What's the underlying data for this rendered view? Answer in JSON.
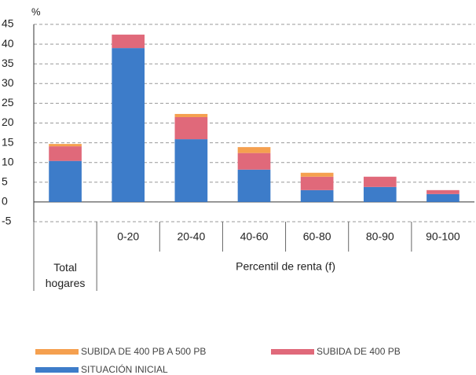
{
  "chart_data": {
    "type": "bar",
    "stacked": true,
    "y_unit": "%",
    "categories": [
      "Total hogares",
      "0-20",
      "20-40",
      "40-60",
      "60-80",
      "80-90",
      "90-100"
    ],
    "x_group_label": "Percentil de renta (f)",
    "series": [
      {
        "name": "SITUACIÓN INICIAL",
        "color": "#3d7cc9",
        "values": [
          10.4,
          39.0,
          15.9,
          8.2,
          3.0,
          3.8,
          2.0
        ]
      },
      {
        "name": "SUBIDA DE 400 PB",
        "color": "#e0697a",
        "values": [
          3.7,
          3.4,
          5.6,
          4.2,
          3.4,
          2.6,
          1.0
        ]
      },
      {
        "name": "SUBIDA DE 400 PB A 500 PB",
        "color": "#f5a04f",
        "values": [
          0.6,
          0,
          0.8,
          1.5,
          1.0,
          0,
          0
        ]
      }
    ],
    "ylim": [
      -5,
      45
    ],
    "yticks": [
      -5,
      0,
      5,
      10,
      15,
      20,
      25,
      30,
      35,
      40,
      45
    ],
    "grid": true
  }
}
